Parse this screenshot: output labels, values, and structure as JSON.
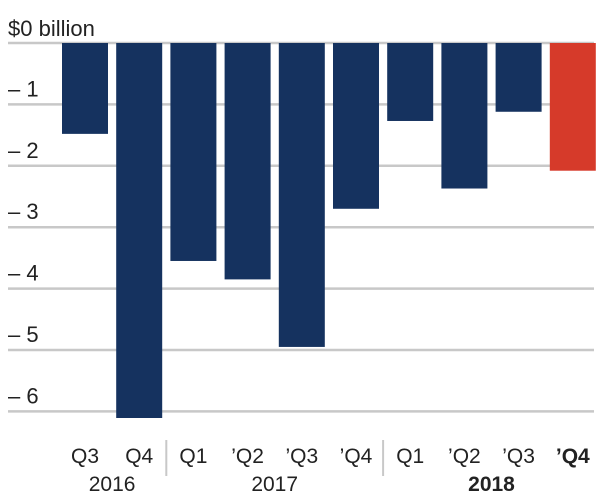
{
  "chart_data": {
    "type": "bar",
    "ytitle": "$0 billion",
    "yticks": [
      "– 1",
      "– 2",
      "– 3",
      "– 4",
      "– 5",
      "– 6"
    ],
    "ylim": [
      -6.5,
      0
    ],
    "categories": [
      "Q3",
      "Q4",
      "Q1",
      "’Q2",
      "’Q3",
      "’Q4",
      "Q1",
      "’Q2",
      "’Q3",
      "’Q4"
    ],
    "values": [
      -1.48,
      -6.5,
      -3.55,
      -3.85,
      -4.95,
      -2.7,
      -1.27,
      -2.37,
      -1.12,
      -2.08
    ],
    "bar_colors": [
      "#15325f",
      "#15325f",
      "#15325f",
      "#15325f",
      "#15325f",
      "#15325f",
      "#15325f",
      "#15325f",
      "#15325f",
      "#d63a2a"
    ],
    "highlight_index": 9,
    "years": [
      {
        "label": "2016",
        "start": 0,
        "end": 1,
        "bold": false
      },
      {
        "label": "2017",
        "start": 2,
        "end": 5,
        "bold": false
      },
      {
        "label": "2018",
        "start": 6,
        "end": 9,
        "bold": true
      }
    ],
    "grid": true
  }
}
